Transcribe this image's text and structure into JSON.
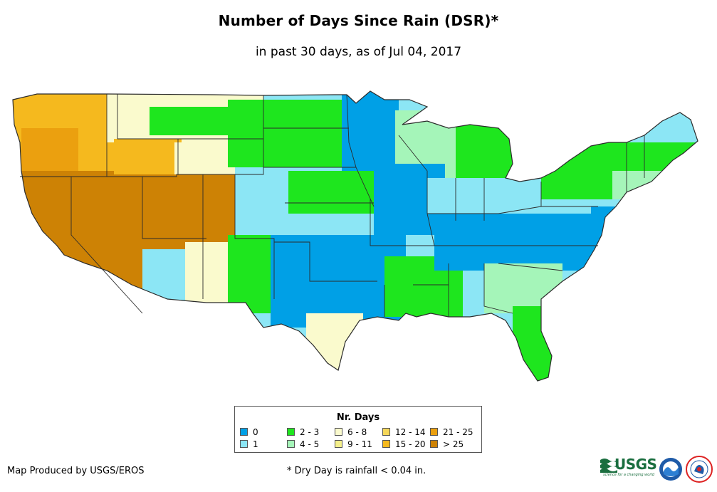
{
  "title": "Number of Days Since Rain (DSR)*",
  "subtitle": "in past 30 days, as of Jul 04, 2017",
  "legend": {
    "title": "Nr. Days",
    "items": [
      {
        "label": "0",
        "color": "#00a0e6"
      },
      {
        "label": "1",
        "color": "#8ce6f5"
      },
      {
        "label": "2 - 3",
        "color": "#1ee61e"
      },
      {
        "label": "4 - 5",
        "color": "#a5f5b9"
      },
      {
        "label": "6 - 8",
        "color": "#fafacd"
      },
      {
        "label": "9 - 11",
        "color": "#f5f08c"
      },
      {
        "label": "12 - 14",
        "color": "#f5d75a"
      },
      {
        "label": "15 - 20",
        "color": "#f5b91e"
      },
      {
        "label": "21 - 25",
        "color": "#eba00f"
      },
      {
        "label": "> 25",
        "color": "#cd8205"
      }
    ]
  },
  "credit": "Map Produced by USGS/EROS",
  "footnote": "* Dry Day is rainfall < 0.04 in.",
  "logos": {
    "usgs": "USGS",
    "usgs_tagline": "science for a changing world",
    "noaa": "NOAA",
    "nws": "NWS"
  }
}
